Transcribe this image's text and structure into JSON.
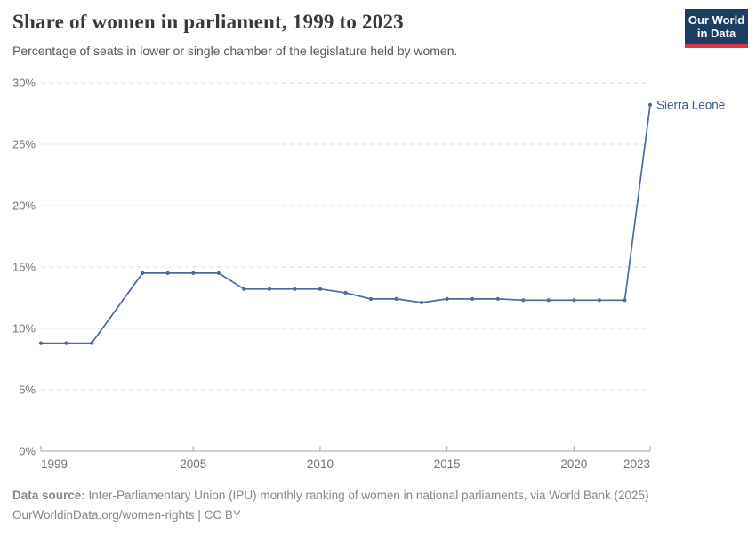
{
  "header": {
    "title": "Share of women in parliament, 1999 to 2023",
    "subtitle": "Percentage of seats in lower or single chamber of the legislature held by women.",
    "logo": {
      "line1": "Our World",
      "line2": "in Data"
    }
  },
  "chart_data": {
    "type": "line",
    "title": "Share of women in parliament, 1999 to 2023",
    "xlabel": "",
    "ylabel": "",
    "xlim": [
      1999,
      2023
    ],
    "ylim": [
      0,
      30
    ],
    "grid": "horizontal-dashed",
    "legend_position": "end-of-line-label",
    "x": [
      1999,
      2000,
      2001,
      2002,
      2003,
      2004,
      2005,
      2006,
      2007,
      2008,
      2009,
      2010,
      2011,
      2012,
      2013,
      2014,
      2015,
      2016,
      2017,
      2018,
      2019,
      2020,
      2021,
      2022,
      2023
    ],
    "series": [
      {
        "name": "Sierra Leone",
        "values": [
          8.8,
          8.8,
          8.8,
          null,
          14.5,
          14.5,
          14.5,
          14.5,
          13.2,
          13.2,
          13.2,
          13.2,
          12.9,
          12.4,
          12.4,
          12.1,
          12.4,
          12.4,
          12.4,
          12.3,
          12.3,
          12.3,
          12.3,
          12.3,
          28.2
        ]
      }
    ],
    "yticks": [
      0,
      5,
      10,
      15,
      20,
      25,
      30
    ],
    "ytick_labels": [
      "0%",
      "5%",
      "10%",
      "15%",
      "20%",
      "25%",
      "30%"
    ],
    "xticks": [
      1999,
      2005,
      2010,
      2015,
      2020,
      2023
    ],
    "xtick_labels": [
      "1999",
      "2005",
      "2010",
      "2015",
      "2020",
      "2023"
    ]
  },
  "footer": {
    "source_label": "Data source:",
    "source_text": " Inter-Parliamentary Union (IPU) monthly ranking of women in national parliaments, via World Bank (2025)",
    "link_line": "OurWorldinData.org/women-rights | CC BY"
  },
  "colors": {
    "series_line": "#4c6a9c",
    "series_label": "#3b5a92",
    "gridline": "#dcdcdc",
    "axis": "#a3a3a3",
    "tick_label": "#737373",
    "logo_bg": "#1d3d63",
    "logo_stripe": "#d7383f"
  }
}
